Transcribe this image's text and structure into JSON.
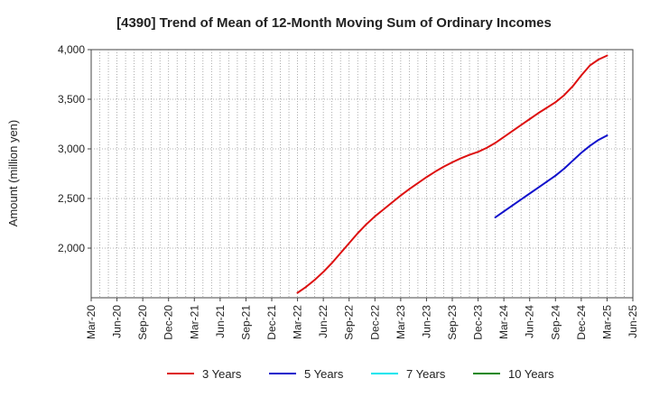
{
  "chart_data": {
    "type": "line",
    "title": "[4390]  Trend of Mean of 12-Month Moving Sum of Ordinary Incomes",
    "ylabel": "Amount (million yen)",
    "xlabel": "",
    "ylim": [
      1500,
      4000
    ],
    "y_ticks": [
      "2,000",
      "2,500",
      "3,000",
      "3,500",
      "4,000"
    ],
    "x_ticks": [
      "Mar-20",
      "Jun-20",
      "Sep-20",
      "Dec-20",
      "Mar-21",
      "Jun-21",
      "Sep-21",
      "Dec-21",
      "Mar-22",
      "Jun-22",
      "Sep-22",
      "Dec-22",
      "Mar-23",
      "Jun-23",
      "Sep-23",
      "Dec-23",
      "Mar-24",
      "Jun-24",
      "Sep-24",
      "Dec-24",
      "Mar-25",
      "Jun-25"
    ],
    "grid": true,
    "legend_position": "bottom",
    "series": [
      {
        "name": "3 Years",
        "color": "#dd1111",
        "x": [
          "Mar-22",
          "Apr-22",
          "May-22",
          "Jun-22",
          "Jul-22",
          "Aug-22",
          "Sep-22",
          "Oct-22",
          "Nov-22",
          "Dec-22",
          "Jan-23",
          "Feb-23",
          "Mar-23",
          "Apr-23",
          "May-23",
          "Jun-23",
          "Jul-23",
          "Aug-23",
          "Sep-23",
          "Oct-23",
          "Nov-23",
          "Dec-23",
          "Jan-24",
          "Feb-24",
          "Mar-24",
          "Apr-24",
          "May-24",
          "Jun-24",
          "Jul-24",
          "Aug-24",
          "Sep-24",
          "Oct-24",
          "Nov-24",
          "Dec-24",
          "Jan-25",
          "Feb-25",
          "Mar-25"
        ],
        "y": [
          1550,
          1610,
          1680,
          1760,
          1850,
          1950,
          2050,
          2150,
          2240,
          2320,
          2390,
          2460,
          2530,
          2595,
          2655,
          2715,
          2770,
          2820,
          2865,
          2905,
          2940,
          2970,
          3010,
          3060,
          3120,
          3180,
          3240,
          3300,
          3360,
          3415,
          3470,
          3540,
          3630,
          3740,
          3840,
          3900,
          3940
        ]
      },
      {
        "name": "5 Years",
        "color": "#1111cc",
        "x": [
          "Feb-24",
          "Mar-24",
          "Apr-24",
          "May-24",
          "Jun-24",
          "Jul-24",
          "Aug-24",
          "Sep-24",
          "Oct-24",
          "Nov-24",
          "Dec-24",
          "Jan-25",
          "Feb-25",
          "Mar-25"
        ],
        "y": [
          2310,
          2370,
          2430,
          2490,
          2550,
          2610,
          2670,
          2730,
          2800,
          2880,
          2960,
          3030,
          3090,
          3135
        ]
      },
      {
        "name": "7 Years",
        "color": "#00e5ee",
        "x": [],
        "y": []
      },
      {
        "name": "10 Years",
        "color": "#118811",
        "x": [],
        "y": []
      }
    ]
  }
}
